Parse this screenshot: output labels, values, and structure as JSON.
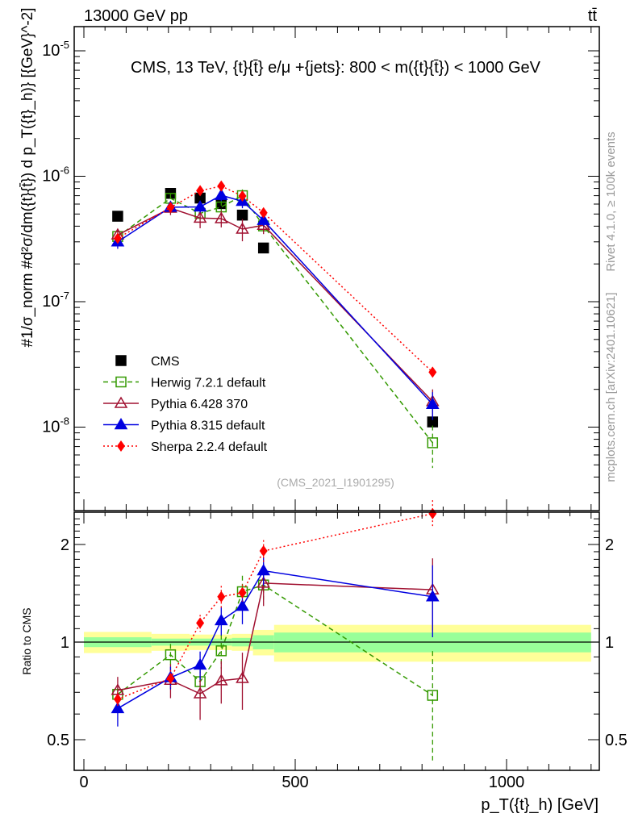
{
  "header": {
    "left": "13000 GeV pp",
    "right": "tt̄"
  },
  "side": {
    "rivet": "Rivet 4.1.0, ≥ 100k events",
    "mcplots": "mcplots.cern.ch [arXiv:2401.10621]"
  },
  "analysis_id": "(CMS_2021_I1901295)",
  "chart_data": [
    {
      "type": "line",
      "title": "CMS, 13 TeV, {t}{t̄} e/μ +{jets}: 800 < m({t}{t̄}) < 1000 GeV",
      "ylabel": "#1/σ_norm #d²σ/dm({t}{t̄}) d p_T({t}_h)} [{GeV}^-2]",
      "yscale": "log",
      "ylim": [
        2.1e-09,
        1.56e-05
      ],
      "xlim": [
        -25,
        1220
      ],
      "yticks": [
        "10^-8",
        "10^-7",
        "10^-6",
        "10^-5"
      ],
      "legend_position": "lower-left",
      "x": [
        80,
        205,
        275,
        325,
        375,
        425,
        825
      ],
      "series": [
        {
          "name": "CMS",
          "color": "#000000",
          "marker": "square-filled",
          "values": [
            4.8e-07,
            7.3e-07,
            6.7e-07,
            6.05e-07,
            4.9e-07,
            2.68e-07,
            1.1e-08
          ]
        },
        {
          "name": "Herwig 7.2.1 default",
          "color": "#339900",
          "marker": "square-open",
          "dash": "dashed",
          "values": [
            3.31e-07,
            6.67e-07,
            5.06e-07,
            5.69e-07,
            7e-07,
            4.02e-07,
            7.5e-09
          ],
          "relerr": [
            0.05,
            0.08,
            0.1,
            0.12,
            0.12,
            0.1,
            0.37
          ]
        },
        {
          "name": "Pythia 6.428 370",
          "color": "#a01030",
          "marker": "triangle-open",
          "dash": "solid",
          "values": [
            3.41e-07,
            5.57e-07,
            4.64e-07,
            4.6e-07,
            3.79e-07,
            4.07e-07,
            1.6e-08
          ],
          "relerr": [
            0.1,
            0.12,
            0.17,
            0.15,
            0.2,
            0.15,
            0.25
          ]
        },
        {
          "name": "Pythia 8.315 default",
          "color": "#0000e0",
          "marker": "triangle-filled",
          "dash": "solid",
          "values": [
            3e-07,
            5.67e-07,
            5.7e-07,
            7.05e-07,
            6.32e-07,
            4.45e-07,
            1.52e-08
          ],
          "relerr": [
            0.12,
            0.08,
            0.1,
            0.1,
            0.12,
            0.1,
            0.25
          ]
        },
        {
          "name": "Sherpa 2.2.4 default",
          "color": "#ff0000",
          "marker": "diamond-filled",
          "dash": "dotted",
          "values": [
            3.2e-07,
            5.64e-07,
            7.67e-07,
            8.35e-07,
            6.96e-07,
            5.12e-07,
            2.74e-08
          ],
          "relerr": [
            0.05,
            0.06,
            0.06,
            0.08,
            0.06,
            0.08,
            0.1
          ]
        }
      ]
    },
    {
      "type": "line",
      "ylabel": "Ratio to CMS",
      "xlabel": "p_T({t}_h) [GeV]",
      "yscale": "log",
      "ylim": [
        0.4,
        2.5
      ],
      "xlim": [
        -25,
        1220
      ],
      "yticks": [
        "0.5",
        "1",
        "2"
      ],
      "xticks": [
        "0",
        "500",
        "1000"
      ],
      "band": {
        "edges": [
          0,
          160,
          250,
          350,
          400,
          450,
          1200
        ],
        "stat_halfwidth": [
          0.035,
          0.025,
          0.025,
          0.03,
          0.05,
          0.07
        ],
        "total_halfwidth": [
          0.075,
          0.06,
          0.055,
          0.06,
          0.09,
          0.13
        ],
        "stat_color": "#99ff99",
        "total_color": "#ffff99"
      },
      "x": [
        80,
        205,
        275,
        325,
        375,
        425,
        825
      ],
      "series": [
        {
          "name": "Herwig 7.2.1 default",
          "values": [
            0.69,
            0.914,
            0.755,
            0.94,
            1.43,
            1.5,
            0.685
          ]
        },
        {
          "name": "Pythia 6.428 370",
          "values": [
            0.71,
            0.763,
            0.693,
            0.76,
            0.773,
            1.52,
            1.45
          ]
        },
        {
          "name": "Pythia 8.315 default",
          "values": [
            0.624,
            0.777,
            0.85,
            1.165,
            1.29,
            1.66,
            1.38
          ]
        },
        {
          "name": "Sherpa 2.2.4 default",
          "values": [
            0.667,
            0.773,
            1.145,
            1.38,
            1.42,
            1.91,
            2.49
          ]
        }
      ]
    }
  ]
}
